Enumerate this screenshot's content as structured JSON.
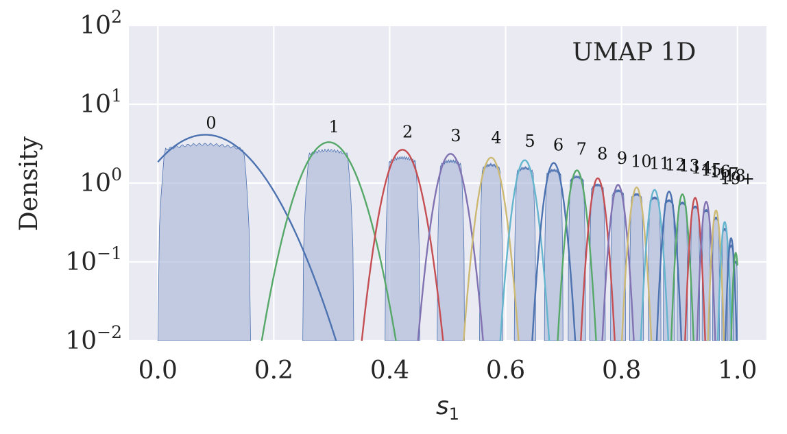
{
  "chart_data": {
    "type": "area",
    "title": "UMAP 1D",
    "xlabel": "s",
    "xlabel_subscript": "1",
    "ylabel": "Density",
    "xlim": [
      -0.05,
      1.05
    ],
    "ylim": [
      0.01,
      100
    ],
    "yscale": "log",
    "grid": true,
    "x_ticks": [
      {
        "v": 0.0,
        "label": "0.0"
      },
      {
        "v": 0.2,
        "label": "0.2"
      },
      {
        "v": 0.4,
        "label": "0.4"
      },
      {
        "v": 0.6,
        "label": "0.6"
      },
      {
        "v": 0.8,
        "label": "0.8"
      },
      {
        "v": 1.0,
        "label": "1.0"
      }
    ],
    "y_ticks": [
      {
        "v": 100,
        "base": "10",
        "exp": "2"
      },
      {
        "v": 10,
        "base": "10",
        "exp": "1"
      },
      {
        "v": 1,
        "base": "10",
        "exp": "0"
      },
      {
        "v": 0.1,
        "base": "10",
        "exp": "−1"
      },
      {
        "v": 0.01,
        "base": "10",
        "exp": "−2"
      }
    ],
    "colors": [
      "#4c72b0",
      "#55a868",
      "#c44e52",
      "#8172b2",
      "#ccb974",
      "#64b5cd"
    ],
    "fill_color": "#aab7d9",
    "fill_edge": "#4c72b0",
    "clusters": [
      {
        "label": "0",
        "center": 0.082,
        "peak": 4.1,
        "sigma": 0.065,
        "lo": 0.0,
        "hi": 0.16,
        "plateau": 3.1,
        "color": "#4c72b0",
        "label_x": 0.092,
        "label_y": 4.9
      },
      {
        "label": "1",
        "center": 0.295,
        "peak": 3.3,
        "sigma": 0.034,
        "lo": 0.25,
        "hi": 0.338,
        "plateau": 2.6,
        "color": "#55a868",
        "label_x": 0.304,
        "label_y": 4.4
      },
      {
        "label": "2",
        "center": 0.422,
        "peak": 2.65,
        "sigma": 0.021,
        "lo": 0.392,
        "hi": 0.452,
        "plateau": 2.1,
        "color": "#c44e52",
        "label_x": 0.431,
        "label_y": 3.8
      },
      {
        "label": "3",
        "center": 0.505,
        "peak": 2.35,
        "sigma": 0.017,
        "lo": 0.482,
        "hi": 0.529,
        "plateau": 1.9,
        "color": "#8172b2",
        "label_x": 0.514,
        "label_y": 3.4
      },
      {
        "label": "4",
        "center": 0.575,
        "peak": 2.1,
        "sigma": 0.0145,
        "lo": 0.555,
        "hi": 0.595,
        "plateau": 1.7,
        "color": "#ccb974",
        "label_x": 0.584,
        "label_y": 3.2
      },
      {
        "label": "5",
        "center": 0.633,
        "peak": 1.95,
        "sigma": 0.013,
        "lo": 0.615,
        "hi": 0.652,
        "plateau": 1.55,
        "color": "#64b5cd",
        "label_x": 0.642,
        "label_y": 2.9
      },
      {
        "label": "6",
        "center": 0.683,
        "peak": 1.8,
        "sigma": 0.0115,
        "lo": 0.667,
        "hi": 0.699,
        "plateau": 1.45,
        "color": "#4c72b0",
        "label_x": 0.691,
        "label_y": 2.6
      },
      {
        "label": "7",
        "center": 0.723,
        "peak": 1.45,
        "sigma": 0.0105,
        "lo": 0.708,
        "hi": 0.738,
        "plateau": 1.2,
        "color": "#55a868",
        "label_x": 0.731,
        "label_y": 2.3
      },
      {
        "label": "8",
        "center": 0.759,
        "peak": 1.15,
        "sigma": 0.0095,
        "lo": 0.745,
        "hi": 0.772,
        "plateau": 0.95,
        "color": "#c44e52",
        "label_x": 0.767,
        "label_y": 2.0
      },
      {
        "label": "9",
        "center": 0.794,
        "peak": 0.95,
        "sigma": 0.009,
        "lo": 0.781,
        "hi": 0.807,
        "plateau": 0.8,
        "color": "#8172b2",
        "label_x": 0.801,
        "label_y": 1.75
      },
      {
        "label": "10",
        "center": 0.826,
        "peak": 0.88,
        "sigma": 0.0085,
        "lo": 0.814,
        "hi": 0.838,
        "plateau": 0.72,
        "color": "#ccb974",
        "label_x": 0.834,
        "label_y": 1.6
      },
      {
        "label": "11",
        "center": 0.857,
        "peak": 0.82,
        "sigma": 0.008,
        "lo": 0.846,
        "hi": 0.868,
        "plateau": 0.65,
        "color": "#64b5cd",
        "label_x": 0.866,
        "label_y": 1.5
      },
      {
        "label": "12",
        "center": 0.882,
        "peak": 0.78,
        "sigma": 0.0072,
        "lo": 0.872,
        "hi": 0.892,
        "plateau": 0.6,
        "color": "#4c72b0",
        "label_x": 0.893,
        "label_y": 1.45
      },
      {
        "label": "13",
        "center": 0.905,
        "peak": 0.72,
        "sigma": 0.0066,
        "lo": 0.896,
        "hi": 0.914,
        "plateau": 0.56,
        "color": "#55a868",
        "label_x": 0.917,
        "label_y": 1.4
      },
      {
        "label": "14",
        "center": 0.927,
        "peak": 0.65,
        "sigma": 0.006,
        "lo": 0.919,
        "hi": 0.935,
        "plateau": 0.5,
        "color": "#c44e52",
        "label_x": 0.938,
        "label_y": 1.32
      },
      {
        "label": "15",
        "center": 0.946,
        "peak": 0.58,
        "sigma": 0.0055,
        "lo": 0.939,
        "hi": 0.953,
        "plateau": 0.45,
        "color": "#8172b2",
        "label_x": 0.955,
        "label_y": 1.25
      },
      {
        "label": "16",
        "center": 0.963,
        "peak": 0.45,
        "sigma": 0.005,
        "lo": 0.957,
        "hi": 0.969,
        "plateau": 0.36,
        "color": "#ccb974",
        "label_x": 0.97,
        "label_y": 1.18
      },
      {
        "label": "17",
        "center": 0.978,
        "peak": 0.32,
        "sigma": 0.0045,
        "lo": 0.973,
        "hi": 0.983,
        "plateau": 0.26,
        "color": "#64b5cd",
        "label_x": 0.984,
        "label_y": 1.1
      },
      {
        "label": "18",
        "center": 0.989,
        "peak": 0.2,
        "sigma": 0.004,
        "lo": 0.985,
        "hi": 0.993,
        "plateau": 0.16,
        "color": "#4c72b0",
        "label_x": 0.996,
        "label_y": 1.05
      },
      {
        "label": "19+",
        "center": 0.997,
        "peak": 0.13,
        "sigma": 0.0035,
        "lo": 0.993,
        "hi": 1.0,
        "plateau": 0.1,
        "color": "#55a868",
        "label_x": 1.0,
        "label_y": 0.97
      }
    ]
  }
}
